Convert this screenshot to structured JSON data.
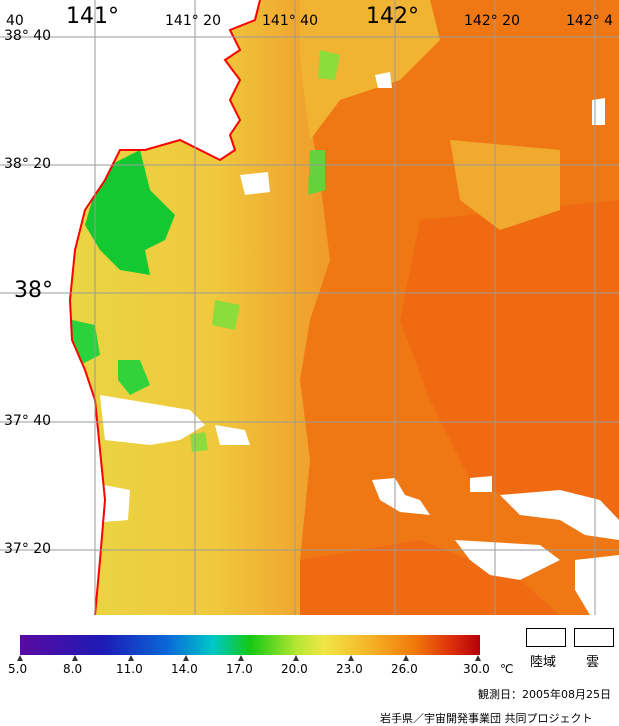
{
  "lon_labels": [
    {
      "text": "40",
      "size": "sm"
    },
    {
      "text": "141°",
      "size": "big"
    },
    {
      "text": "141° 20",
      "size": "sm"
    },
    {
      "text": "141° 40",
      "size": "sm"
    },
    {
      "text": "142°",
      "size": "big"
    },
    {
      "text": "142° 20",
      "size": "sm"
    },
    {
      "text": "142° 4",
      "size": "sm"
    }
  ],
  "lat_labels": [
    {
      "text": "38° 40",
      "size": "sm"
    },
    {
      "text": "38° 20",
      "size": "sm"
    },
    {
      "text": "38°",
      "size": "big"
    },
    {
      "text": "37° 40",
      "size": "sm"
    },
    {
      "text": "37° 20",
      "size": "sm"
    }
  ],
  "colorbar": {
    "tick_labels": [
      "5.0",
      "8.0",
      "11.0",
      "14.0",
      "17.0",
      "20.0",
      "23.0",
      "26.0",
      "30.0"
    ],
    "unit": "℃"
  },
  "legend": {
    "land_label": "陸域",
    "cloud_label": "雲"
  },
  "footer": {
    "observation_date": "観測日：2005年08月25日",
    "credit": "岩手県／宇宙開発事業団 共同プロジェクト"
  },
  "colors": {
    "coast": "#ff0000",
    "grid": "#9a9a9a",
    "warm": "#f07814",
    "mild": "#f0c83c",
    "cool": "#14c832",
    "land": "#ffffff"
  }
}
